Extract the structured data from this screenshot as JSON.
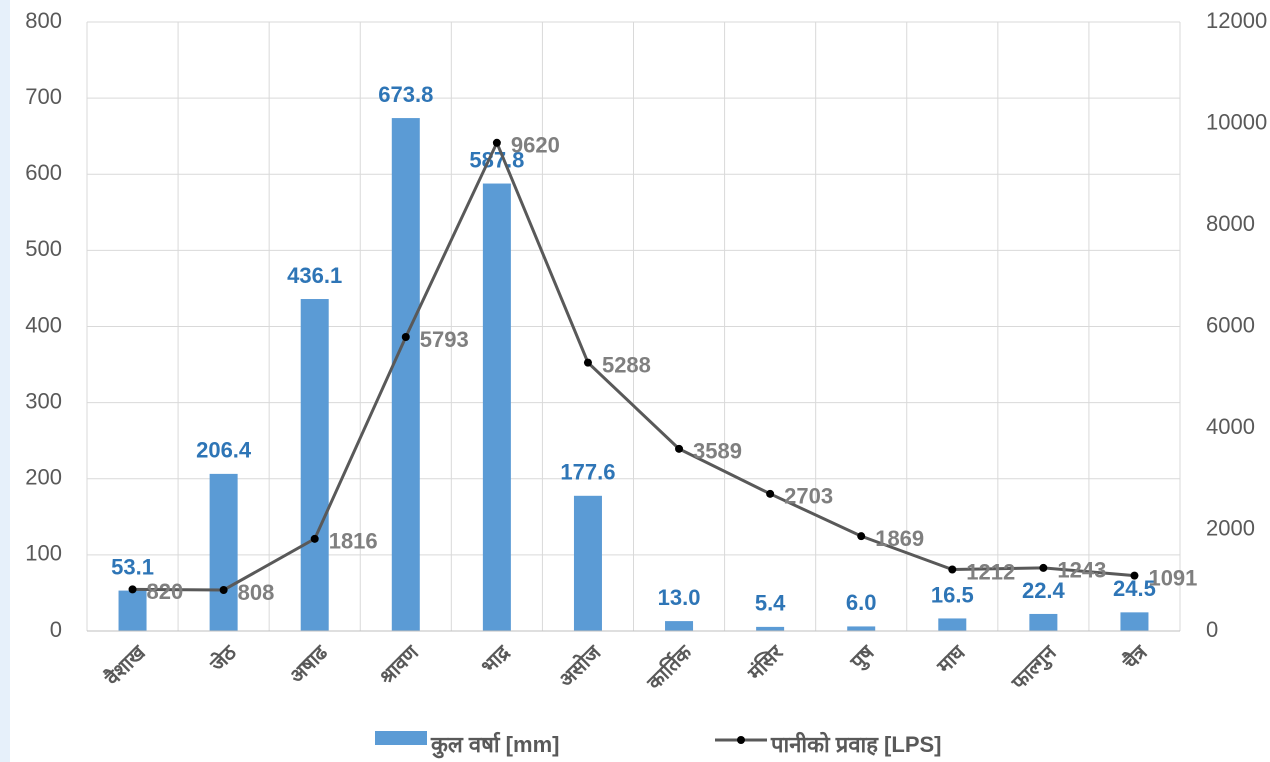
{
  "chart_data": {
    "type": "bar-line",
    "categories": [
      "वैशाख",
      "जेठ",
      "अषाढ",
      "श्रावण",
      "भाद्र",
      "असोज",
      "कार्तिक",
      "मंसिर",
      "पुष",
      "माघ",
      "फाल्गुन",
      "चैत्र"
    ],
    "series": [
      {
        "name": "कुल वर्षा [mm]",
        "type": "bar",
        "color": "#5b9bd5",
        "values": [
          53.1,
          206.4,
          436.1,
          673.8,
          587.8,
          177.6,
          13,
          5.4,
          6,
          16.5,
          22.4,
          24.5
        ],
        "value_labels": [
          "53.1",
          "206.4",
          "436.1",
          "673.8",
          "587.8",
          "177.6",
          "13.0",
          "5.4",
          "6.0",
          "16.5",
          "22.4",
          "24.5"
        ]
      },
      {
        "name": "पानीको प्रवाह [LPS]",
        "type": "line",
        "axis": "y2",
        "color": "#595959",
        "values": [
          820,
          808,
          1816,
          5793,
          9620,
          5288,
          3589,
          2703,
          1869,
          1212,
          1243,
          1091
        ]
      }
    ],
    "ylim": [
      0,
      800
    ],
    "yticks": [
      0,
      100,
      200,
      300,
      400,
      500,
      600,
      700,
      800
    ],
    "y2lim": [
      0,
      12000
    ],
    "y2ticks": [
      0,
      2000,
      4000,
      6000,
      8000,
      10000,
      12000
    ],
    "grid": true,
    "legend": "bottom"
  }
}
